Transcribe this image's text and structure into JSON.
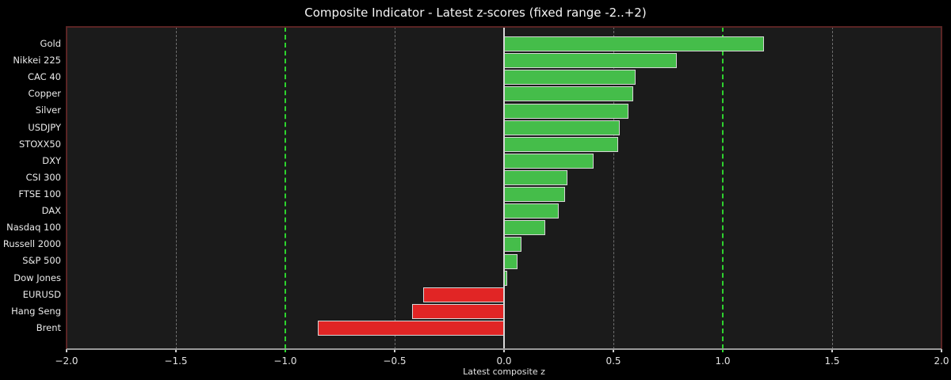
{
  "title": "Composite Indicator - Latest z-scores (fixed range -2..+2)",
  "xlabel": "Latest composite z",
  "chart_data": {
    "type": "bar",
    "orientation": "horizontal",
    "title": "Composite Indicator - Latest z-scores (fixed range -2..+2)",
    "xlabel": "Latest composite z",
    "ylabel": "",
    "categories": [
      "Gold",
      "Nikkei 225",
      "CAC 40",
      "Copper",
      "Silver",
      "USDJPY",
      "STOXX50",
      "DXY",
      "CSI 300",
      "FTSE 100",
      "DAX",
      "Nasdaq 100",
      "Russell 2000",
      "S&P 500",
      "Dow Jones",
      "EURUSD",
      "Hang Seng",
      "Brent"
    ],
    "values": [
      1.19,
      0.79,
      0.6,
      0.59,
      0.57,
      0.53,
      0.52,
      0.41,
      0.29,
      0.28,
      0.25,
      0.19,
      0.08,
      0.06,
      0.01,
      -0.37,
      -0.42,
      -0.85
    ],
    "xlim": [
      -2.0,
      2.0
    ],
    "xticks": [
      -2.0,
      -1.5,
      -1.0,
      -0.5,
      0.0,
      0.5,
      1.0,
      1.5,
      2.0
    ],
    "xtick_labels": [
      "−2.0",
      "−1.5",
      "−1.0",
      "−0.5",
      "0.0",
      "0.5",
      "1.0",
      "1.5",
      "2.0"
    ],
    "reference_lines": [
      -1.0,
      1.0
    ],
    "gridlines": [
      -1.5,
      -0.5,
      0.5,
      1.5
    ],
    "zero_line": 0.0,
    "legend": "none",
    "grid": "dashed-vertical",
    "colors": {
      "positive_bar": "#45bd4a",
      "negative_bar": "#e12525",
      "bar_edge": "#d6d6d6",
      "threshold_line": "#2ed32e",
      "gridline": "#6e6e6e",
      "zero_line": "#d9d9d9",
      "plot_background": "#1b1b1b",
      "figure_background": "#000000",
      "spine": "#5a2424",
      "bottom_spine": "#9a9a9a",
      "text": "#eaeaea"
    }
  }
}
